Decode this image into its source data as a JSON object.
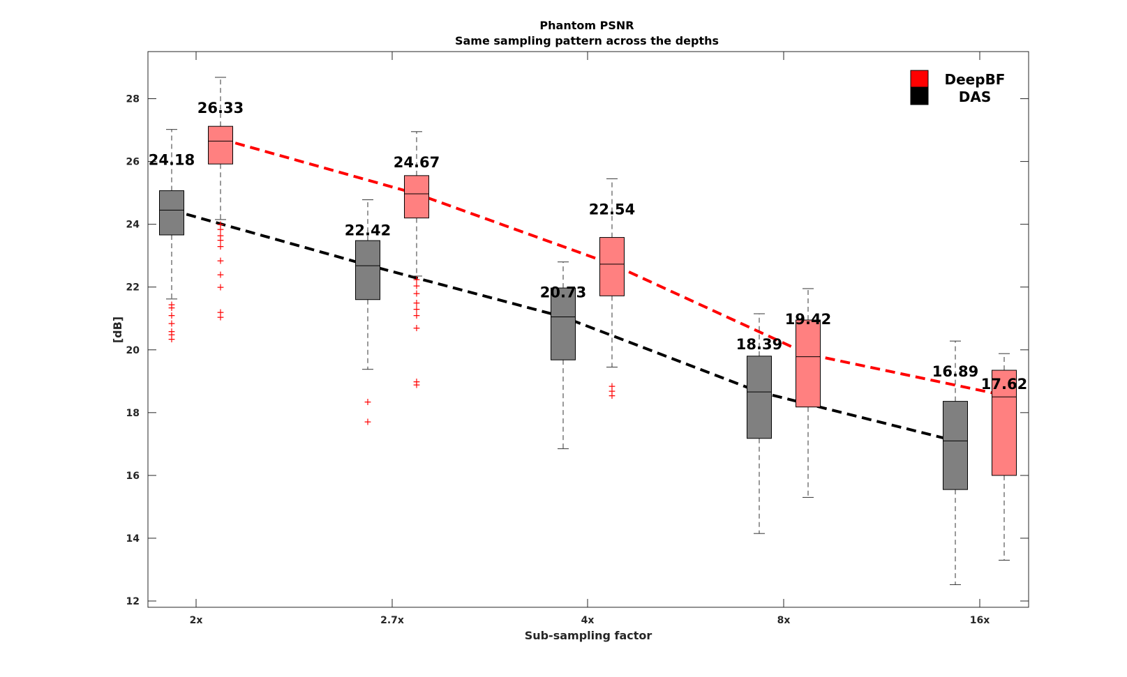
{
  "chart_data": {
    "type": "box",
    "title": "Phantom PSNR",
    "subtitle": "Same sampling pattern across the depths",
    "xlabel": "Sub-sampling factor",
    "ylabel": "[dB]",
    "categories": [
      "2x",
      "2.7x",
      "4x",
      "8x",
      "16x"
    ],
    "ylim": [
      11.8,
      29.5
    ],
    "yticks": [
      12,
      14,
      16,
      18,
      20,
      22,
      24,
      26,
      28
    ],
    "grid": false,
    "legend_position": "top-right",
    "series": [
      {
        "name": "DeepBF",
        "color": "#ff0000",
        "box_color": "#ff8080",
        "trend_line": "dashed",
        "boxes": [
          {
            "category": "2x",
            "whisker_low": 24.15,
            "q1": 25.92,
            "median": 26.65,
            "q3": 27.12,
            "whisker_high": 28.68,
            "mean_label": "26.33",
            "outliers": [
              24.0,
              23.85,
              23.65,
              23.5,
              23.3,
              22.85,
              22.4,
              22.0,
              21.2,
              21.05
            ]
          },
          {
            "category": "2.7x",
            "whisker_low": 22.35,
            "q1": 24.2,
            "median": 24.97,
            "q3": 25.55,
            "whisker_high": 26.95,
            "mean_label": "24.67",
            "outliers": [
              22.25,
              22.05,
              21.8,
              21.5,
              21.3,
              21.1,
              20.7,
              19.0,
              18.9
            ]
          },
          {
            "category": "4x",
            "whisker_low": 19.45,
            "q1": 21.72,
            "median": 22.73,
            "q3": 23.58,
            "whisker_high": 25.45,
            "mean_label": "22.54",
            "outliers": [
              18.85,
              18.7,
              18.55
            ]
          },
          {
            "category": "8x",
            "whisker_low": 15.3,
            "q1": 18.18,
            "median": 19.78,
            "q3": 20.95,
            "whisker_high": 21.95,
            "mean_label": "19.42",
            "outliers": []
          },
          {
            "category": "16x",
            "whisker_low": 13.3,
            "q1": 16.0,
            "median": 18.5,
            "q3": 19.35,
            "whisker_high": 19.88,
            "mean_label": "17.62",
            "outliers": []
          }
        ]
      },
      {
        "name": "DAS",
        "color": "#000000",
        "box_color": "#808080",
        "trend_line": "dashed",
        "boxes": [
          {
            "category": "2x",
            "whisker_low": 21.62,
            "q1": 23.66,
            "median": 24.45,
            "q3": 25.07,
            "whisker_high": 27.02,
            "mean_label": "24.18",
            "outliers": [
              21.45,
              21.35,
              21.1,
              20.85,
              20.6,
              20.5,
              20.35
            ]
          },
          {
            "category": "2.7x",
            "whisker_low": 19.38,
            "q1": 21.6,
            "median": 22.68,
            "q3": 23.48,
            "whisker_high": 24.78,
            "mean_label": "22.42",
            "outliers": [
              18.35,
              17.72
            ]
          },
          {
            "category": "4x",
            "whisker_low": 16.85,
            "q1": 19.68,
            "median": 21.05,
            "q3": 21.97,
            "whisker_high": 22.8,
            "mean_label": "20.73",
            "outliers": []
          },
          {
            "category": "8x",
            "whisker_low": 14.15,
            "q1": 17.18,
            "median": 18.66,
            "q3": 19.8,
            "whisker_high": 21.15,
            "mean_label": "18.39",
            "outliers": []
          },
          {
            "category": "16x",
            "whisker_low": 12.52,
            "q1": 15.55,
            "median": 17.1,
            "q3": 18.36,
            "whisker_high": 20.28,
            "mean_label": "16.89",
            "outliers": []
          }
        ]
      }
    ],
    "trend_lines": [
      {
        "series": "DeepBF",
        "color": "#ff0000",
        "y": [
          26.72,
          24.97,
          22.73,
          19.86,
          18.55
        ]
      },
      {
        "series": "DAS",
        "color": "#000000",
        "y": [
          24.45,
          22.7,
          21.05,
          18.66,
          17.1
        ]
      }
    ]
  }
}
